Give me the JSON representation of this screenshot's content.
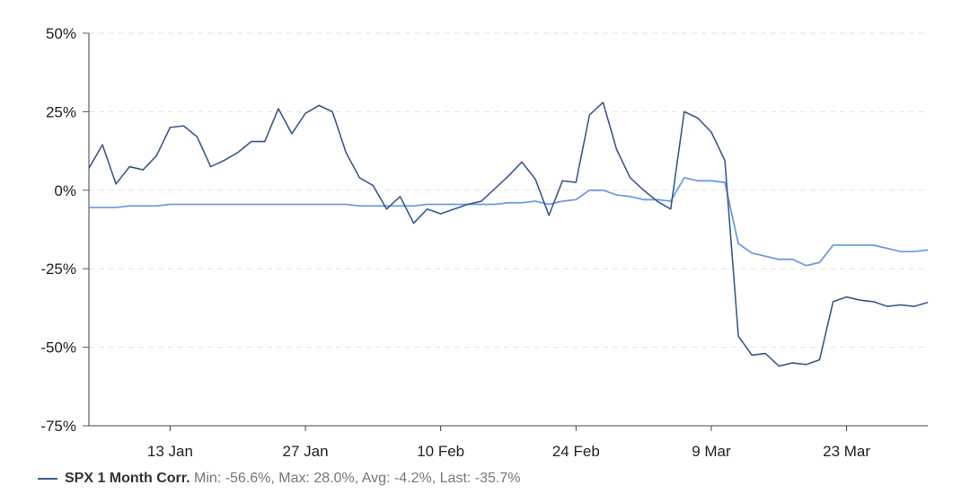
{
  "chart_data": {
    "type": "line",
    "title": "",
    "xlabel": "",
    "ylabel": "",
    "ylim": [
      -75,
      50
    ],
    "y_ticks": [
      {
        "value": 50,
        "label": "50%"
      },
      {
        "value": 25,
        "label": "25%"
      },
      {
        "value": 0,
        "label": "0%"
      },
      {
        "value": -25,
        "label": "-25%"
      },
      {
        "value": -50,
        "label": "-50%"
      },
      {
        "value": -75,
        "label": "-75%"
      }
    ],
    "x_ticks": [
      {
        "index": 6,
        "label": "13 Jan"
      },
      {
        "index": 16,
        "label": "27 Jan"
      },
      {
        "index": 26,
        "label": "10 Feb"
      },
      {
        "index": 36,
        "label": "24 Feb"
      },
      {
        "index": 46,
        "label": "9 Mar"
      },
      {
        "index": 56,
        "label": "23 Mar"
      }
    ],
    "grid": "horizontal dashed",
    "legend_position": "bottom-left",
    "series": [
      {
        "name": "SPX 1 Month Corr.",
        "color": "#3b5a8a",
        "values": [
          7,
          14.5,
          2,
          7.5,
          6.5,
          11,
          20,
          20.5,
          17,
          7.5,
          9.5,
          12,
          15.5,
          15.5,
          26,
          18,
          24.5,
          27,
          25,
          12,
          4,
          1.5,
          -6,
          -2,
          -10.5,
          -6,
          -7.5,
          -6,
          -4.5,
          -3.5,
          0.5,
          4.5,
          9,
          3.5,
          -8,
          3,
          2.5,
          24,
          28,
          13,
          4,
          0,
          -3.5,
          -6,
          25,
          23,
          18.5,
          9.5,
          -46.5,
          -52.5,
          -52,
          -56,
          -55,
          -55.5,
          -54,
          -35.5,
          -34,
          -35,
          -35.5,
          -37,
          -36.5,
          -37,
          -35.7
        ]
      },
      {
        "name": "",
        "color": "#6d9de0",
        "values": [
          -5.5,
          -5.5,
          -5.5,
          -5,
          -5,
          -5,
          -4.5,
          -4.5,
          -4.5,
          -4.5,
          -4.5,
          -4.5,
          -4.5,
          -4.5,
          -4.5,
          -4.5,
          -4.5,
          -4.5,
          -4.5,
          -4.5,
          -5,
          -5,
          -5,
          -5,
          -5,
          -4.5,
          -4.5,
          -4.5,
          -4.5,
          -4.5,
          -4.5,
          -4,
          -4,
          -3.5,
          -4.5,
          -3.5,
          -3,
          0,
          0,
          -1.5,
          -2,
          -3,
          -3,
          -3.5,
          4,
          3,
          3,
          2.5,
          -17,
          -20,
          -21,
          -22,
          -22,
          -24,
          -23,
          -17.5,
          -17.5,
          -17.5,
          -17.5,
          -18.5,
          -19.5,
          -19.5,
          -19
        ]
      }
    ]
  },
  "legend": {
    "series_name": "SPX 1 Month Corr.",
    "stats": "Min: -56.6%, Max: 28.0%, Avg: -4.2%, Last: -35.7%"
  }
}
